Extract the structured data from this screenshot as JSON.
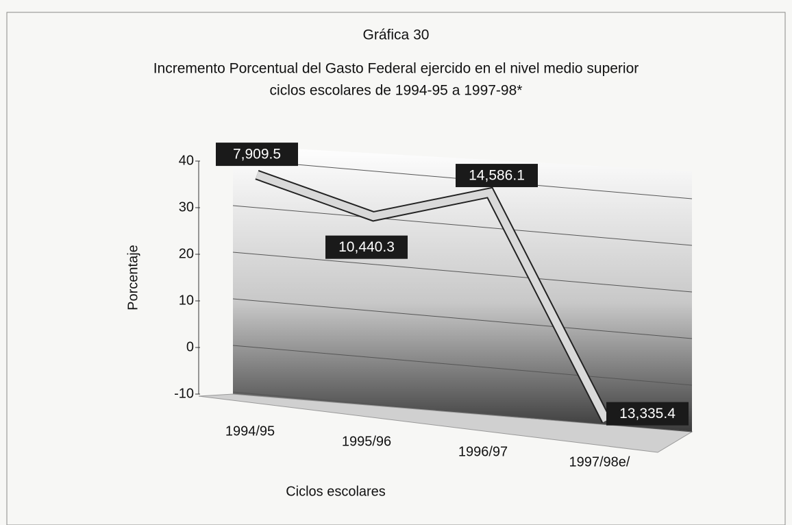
{
  "chart_data": {
    "type": "line",
    "title": [
      "Gráfica 30",
      "Incremento Porcentual del Gasto Federal ejercido en el nivel medio superior",
      "ciclos escolares de 1994-95 a 1997-98*"
    ],
    "xlabel": "Ciclos escolares",
    "ylabel": "Porcentaje",
    "categories": [
      "1994/95",
      "1995/96",
      "1996/97",
      "1997/98e/"
    ],
    "series": [
      {
        "name": "Incremento",
        "color": "#d9d9d9",
        "values": [
          38,
          31,
          38,
          -9
        ]
      }
    ],
    "annotations": [
      "7,909.5",
      "10,440.3",
      "14,586.1",
      "13,335.4"
    ],
    "ylim": [
      -10,
      40
    ],
    "yticks": [
      -10,
      0,
      10,
      20,
      30,
      40
    ],
    "grid": true
  }
}
